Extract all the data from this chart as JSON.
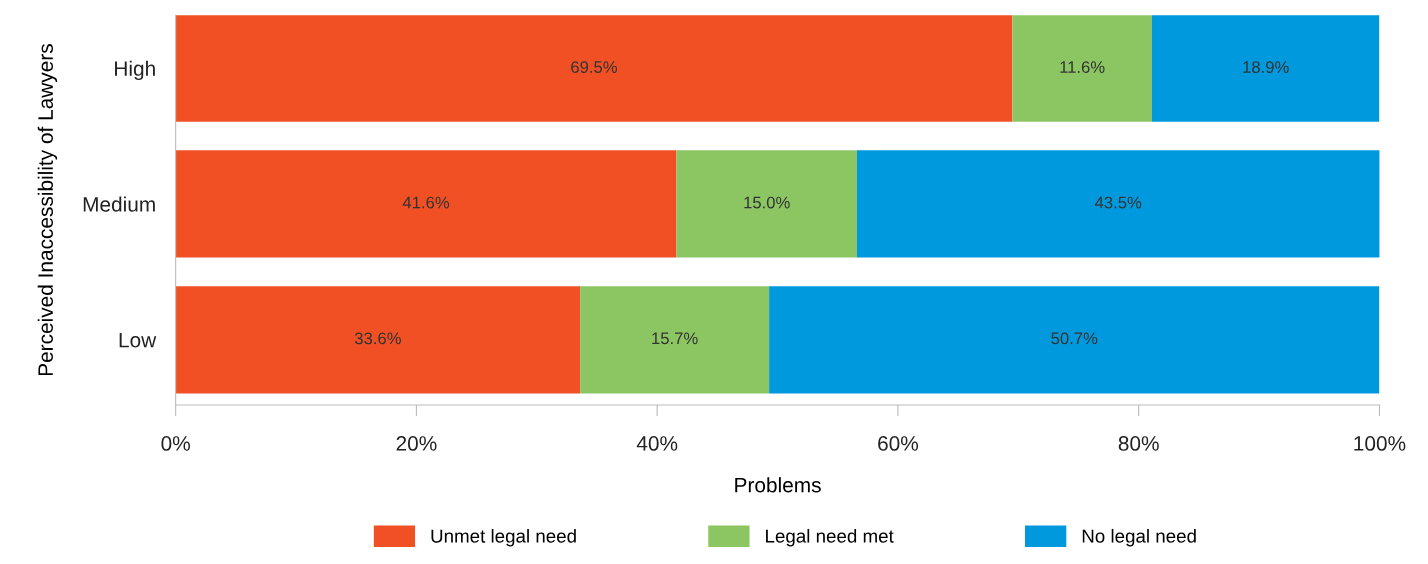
{
  "chart_data": {
    "type": "bar",
    "orientation": "horizontal",
    "stacked": true,
    "categories": [
      "High",
      "Medium",
      "Low"
    ],
    "series": [
      {
        "name": "Unmet legal need",
        "color": "#f05023",
        "values": [
          69.5,
          41.6,
          33.6
        ],
        "value_labels": [
          "69.5%",
          "41.6%",
          "33.6%"
        ]
      },
      {
        "name": "Legal need met",
        "color": "#8cc663",
        "values": [
          11.6,
          15.0,
          15.7
        ],
        "value_labels": [
          "11.6%",
          "15.0%",
          "15.7%"
        ]
      },
      {
        "name": "No legal need",
        "color": "#0099dd",
        "values": [
          18.9,
          43.5,
          50.7
        ],
        "value_labels": [
          "18.9%",
          "43.5%",
          "50.7%"
        ]
      }
    ],
    "xlim": [
      0,
      100
    ],
    "xticks": [
      {
        "value": 0,
        "label": "0%"
      },
      {
        "value": 20,
        "label": "20%"
      },
      {
        "value": 40,
        "label": "40%"
      },
      {
        "value": 60,
        "label": "60%"
      },
      {
        "value": 80,
        "label": "80%"
      },
      {
        "value": 100,
        "label": "100%"
      }
    ],
    "xlabel": "Problems",
    "ylabel": "Perceived Inaccessibility of Lawyers",
    "legend": "bottom",
    "grid": false
  }
}
